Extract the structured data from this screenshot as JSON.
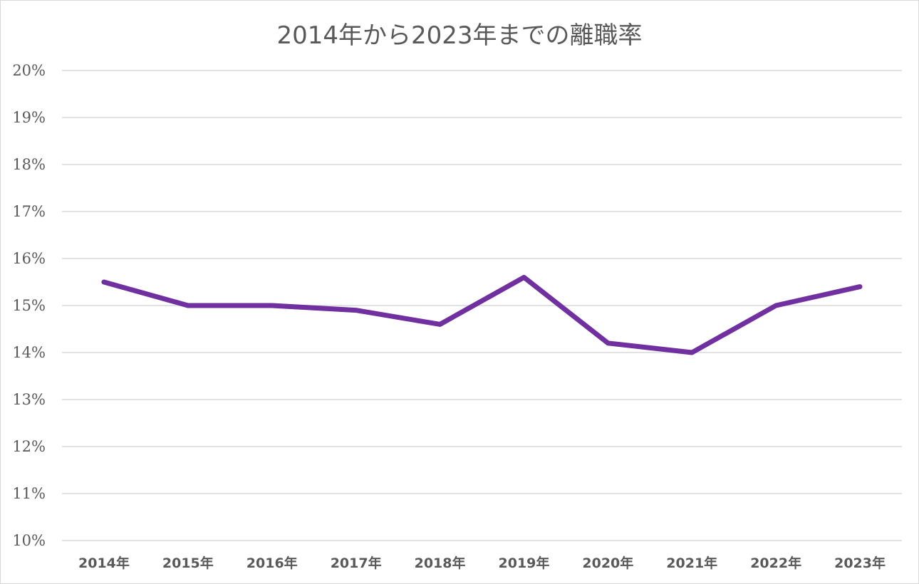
{
  "chart_data": {
    "type": "line",
    "title": "2014年から2023年までの離職率",
    "xlabel": "",
    "ylabel": "",
    "categories": [
      "2014年",
      "2015年",
      "2016年",
      "2017年",
      "2018年",
      "2019年",
      "2020年",
      "2021年",
      "2022年",
      "2023年"
    ],
    "series": [
      {
        "values": [
          15.5,
          15.0,
          15.0,
          14.9,
          14.6,
          15.6,
          14.2,
          14.0,
          15.0,
          15.4
        ]
      }
    ],
    "ylim": [
      10,
      20
    ],
    "y_ticks": [
      "10%",
      "11%",
      "12%",
      "13%",
      "14%",
      "15%",
      "16%",
      "17%",
      "18%",
      "19%",
      "20%"
    ],
    "grid": true,
    "legend": "none",
    "line_color": "#7030a0",
    "grid_color": "#d9d9d9"
  }
}
